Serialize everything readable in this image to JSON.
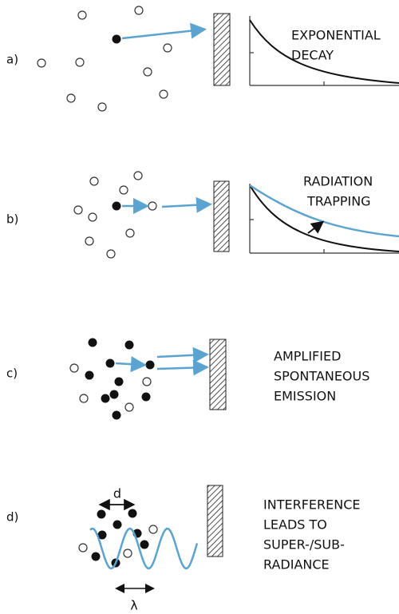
{
  "panels": [
    {
      "label": "a)",
      "caption": [
        "EXPONENTIAL",
        "DECAY"
      ]
    },
    {
      "label": "b)",
      "caption": [
        "RADIATION",
        "TRAPPING"
      ]
    },
    {
      "label": "c)",
      "caption": [
        "AMPLIFIED",
        "SPONTANEOUS",
        "EMISSION"
      ]
    },
    {
      "label": "d)",
      "caption": [
        "INTERFERENCE",
        "LEADS TO",
        "SUPER-/SUB-",
        "RADIANCE"
      ],
      "spacing_symbol": "d",
      "wavelength_symbol": "λ"
    }
  ]
}
